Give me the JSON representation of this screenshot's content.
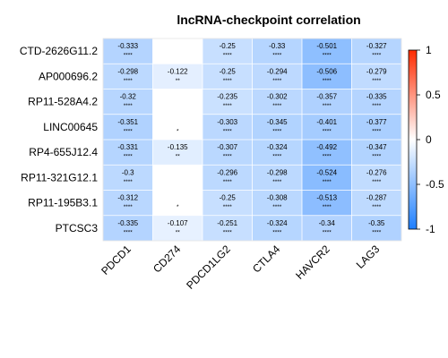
{
  "chart_data": {
    "type": "heatmap",
    "title": "lncRNA-checkpoint correlation",
    "rows": [
      "CTD-2626G11.2",
      "AP000696.2",
      "RP11-528A4.2",
      "LINC00645",
      "RP4-655J12.4",
      "RP11-321G12.1",
      "RP11-195B3.1",
      "PTCSC3"
    ],
    "columns": [
      "PDCD1",
      "CD274",
      "PDCD1LG2",
      "CTLA4",
      "HAVCR2",
      "LAG3"
    ],
    "values": [
      [
        -0.333,
        null,
        -0.25,
        -0.33,
        -0.501,
        -0.327
      ],
      [
        -0.298,
        -0.122,
        -0.25,
        -0.294,
        -0.506,
        -0.279
      ],
      [
        -0.32,
        null,
        -0.235,
        -0.302,
        -0.357,
        -0.335
      ],
      [
        -0.351,
        null,
        -0.303,
        -0.345,
        -0.401,
        -0.377
      ],
      [
        -0.331,
        -0.135,
        -0.307,
        -0.324,
        -0.492,
        -0.347
      ],
      [
        -0.3,
        null,
        -0.296,
        -0.298,
        -0.524,
        -0.276
      ],
      [
        -0.312,
        null,
        -0.25,
        -0.308,
        -0.513,
        -0.287
      ],
      [
        -0.335,
        -0.107,
        -0.251,
        -0.324,
        -0.34,
        -0.35
      ]
    ],
    "value_labels": [
      [
        "-0.333",
        "",
        "-0.25",
        "-0.33",
        "-0.501",
        "-0.327"
      ],
      [
        "-0.298",
        "-0.122",
        "-0.25",
        "-0.294",
        "-0.506",
        "-0.279"
      ],
      [
        "-0.32",
        "",
        "-0.235",
        "-0.302",
        "-0.357",
        "-0.335"
      ],
      [
        "-0.351",
        "",
        "-0.303",
        "-0.345",
        "-0.401",
        "-0.377"
      ],
      [
        "-0.331",
        "-0.135",
        "-0.307",
        "-0.324",
        "-0.492",
        "-0.347"
      ],
      [
        "-0.3",
        "",
        "-0.296",
        "-0.298",
        "-0.524",
        "-0.276"
      ],
      [
        "-0.312",
        "",
        "-0.25",
        "-0.308",
        "-0.513",
        "-0.287"
      ],
      [
        "-0.335",
        "-0.107",
        "-0.251",
        "-0.324",
        "-0.34",
        "-0.35"
      ]
    ],
    "significance": [
      [
        "****",
        "",
        "****",
        "****",
        "****",
        "****"
      ],
      [
        "****",
        "**",
        "****",
        "****",
        "****",
        "****"
      ],
      [
        "****",
        "",
        "****",
        "****",
        "****",
        "****"
      ],
      [
        "****",
        "*",
        "****",
        "****",
        "****",
        "****"
      ],
      [
        "****",
        "**",
        "****",
        "****",
        "****",
        "****"
      ],
      [
        "****",
        "",
        "****",
        "****",
        "****",
        "****"
      ],
      [
        "****",
        "*",
        "****",
        "****",
        "****",
        "****"
      ],
      [
        "****",
        "**",
        "****",
        "****",
        "****",
        "****"
      ]
    ],
    "colorbar": {
      "range": [
        -1,
        1
      ],
      "ticks": [
        1,
        0.5,
        0,
        -0.5,
        -1
      ],
      "tick_labels": [
        "1",
        "0.5",
        "0",
        "-0.5",
        "-1"
      ],
      "colors": {
        "negative": "#1E7FFF",
        "zero": "#FFFFFF",
        "positive": "#FF2A00"
      }
    },
    "grid": true,
    "legend_position": "right"
  }
}
